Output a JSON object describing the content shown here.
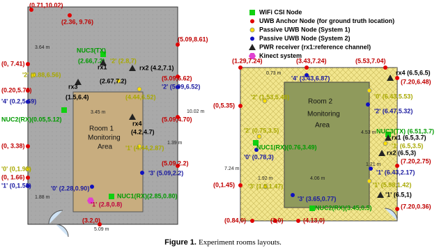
{
  "legend": [
    "WiFi CSI Node",
    "UWB Anchor Node (for ground truth location)",
    "Passive UWB Node (System 1)",
    "Passive UWB Node (System 2)",
    "PWR receiver (rx1:reference channel)",
    "Kinect system"
  ],
  "room1": {
    "labels": [
      "(0.71,10.02)",
      "(2.36, 9.76)",
      "(5.09,8.61)",
      "(0, 7.41)",
      "(0.20,5.73)",
      "(5.09,6.62)",
      "(5.09,4.70)",
      "(0, 3.38)",
      "(0, 1.66)",
      "(5.09,2.2)",
      "(3.2,0)",
      "'4' (0.2,5.69)",
      "'3' (5.09,2.2)",
      "'1' (0,1.53)",
      "'0' (2.28,0.90)",
      "'2' (5.09,6.52)",
      "'2' (2.8,7)",
      "'2' (0.88,6.56)",
      "(4.44,6.52)",
      "'1' (4.44,2.87)",
      "'0' (0,1.93)",
      "'1' (2.8,0.8)",
      "NUC3(TX)",
      "(2.66,7.2)",
      "NUC2(RX)(0.05,5.12)",
      "NUC1(RX)(2.85,0.80)",
      "rx1",
      "(2.67,7.2)",
      "rx3",
      "(1.5,6.4)",
      "rx2 (4.2,7.1)",
      "rx4",
      "(4.2,4.7)",
      "3.64 m",
      "3.45 m",
      "10.02 m",
      "1.39 m",
      "1.88 m",
      "5.09 m",
      "Room 1",
      "Monitoring",
      "Area"
    ]
  },
  "room2": {
    "labels": [
      "(1.29,7.24)",
      "(3.43,7.24)",
      "(5.53,7.04)",
      "(7.20,6.48)",
      "(0,5.35)",
      "(7.20,2.75)",
      "(0,1.45)",
      "(7.20,0.36)",
      "(0.84,0)",
      "(3,0)",
      "(4.13,0)",
      "'4' (3.43,6.87)",
      "'2' (6.47,5.32)",
      "'0' (0.78,3)",
      "'1' (6.43,2.17)",
      "'3' (3.65,0.77)",
      "'2' (1.53,5.48)",
      "'0' (6.43,5.53)",
      "'2' (0.75,3.5)",
      "'1' (6.5,3.5)",
      "'3' (1.5,1.47)",
      "'1' (5.98,1.42)",
      "NUC1(RX)(0.76,3.49)",
      "NUC3(TX) (6.51,3.7)",
      "NUC2(RX)(3.45,0.5)",
      "rx4 (6.5,6.5)",
      "rx1 (6.5,3.7)",
      "rx2 (6.5,3)",
      "'1' (6.5,1)",
      "0.73 m",
      "7.24 m",
      "4.06 m",
      "4.53 m",
      "1.92 m",
      "1.21 m",
      "Room 2",
      "Monitoring",
      "Area"
    ]
  },
  "caption": {
    "label": "Figure 1.",
    "text": "Experiment rooms layouts."
  }
}
